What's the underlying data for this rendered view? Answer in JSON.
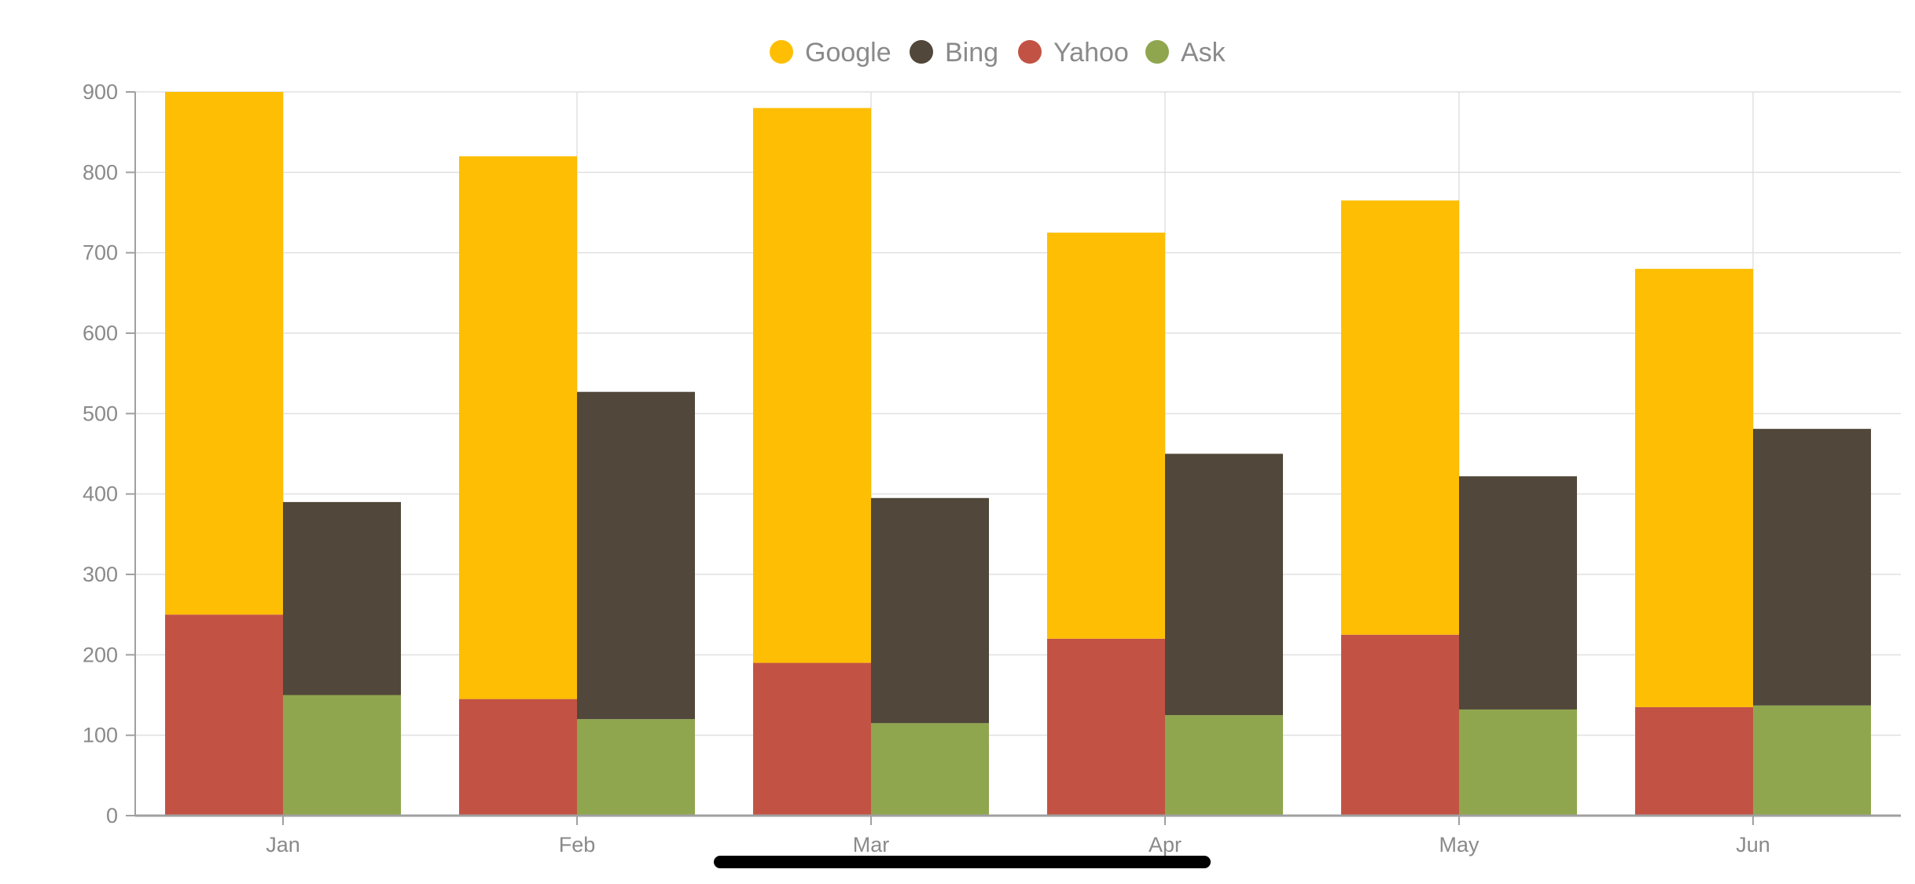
{
  "chart_data": {
    "type": "bar",
    "layout": "grouped-stacked",
    "categories": [
      "Jan",
      "Feb",
      "Mar",
      "Apr",
      "May",
      "Jun"
    ],
    "stacks": [
      {
        "segments": [
          {
            "name": "Yahoo",
            "color": "#C25344",
            "values": [
              250,
              145,
              190,
              220,
              225,
              135
            ]
          },
          {
            "name": "Google",
            "color": "#FDBE04",
            "values": [
              650,
              675,
              690,
              505,
              540,
              545
            ]
          }
        ]
      },
      {
        "segments": [
          {
            "name": "Ask",
            "color": "#8FA64E",
            "values": [
              150,
              120,
              115,
              125,
              132,
              137
            ]
          },
          {
            "name": "Bing",
            "color": "#51473A",
            "values": [
              240,
              407,
              280,
              325,
              290,
              344
            ]
          }
        ]
      }
    ],
    "legend": {
      "position": "top-center",
      "items": [
        {
          "name": "Google",
          "color": "#FDBE04"
        },
        {
          "name": "Bing",
          "color": "#51473A"
        },
        {
          "name": "Yahoo",
          "color": "#C25344"
        },
        {
          "name": "Ask",
          "color": "#8FA64E"
        }
      ]
    },
    "yticks": [
      0,
      100,
      200,
      300,
      400,
      500,
      600,
      700,
      800,
      900
    ],
    "ylim": [
      0,
      900
    ],
    "grid": true,
    "title": "",
    "xlabel": "",
    "ylabel": ""
  }
}
